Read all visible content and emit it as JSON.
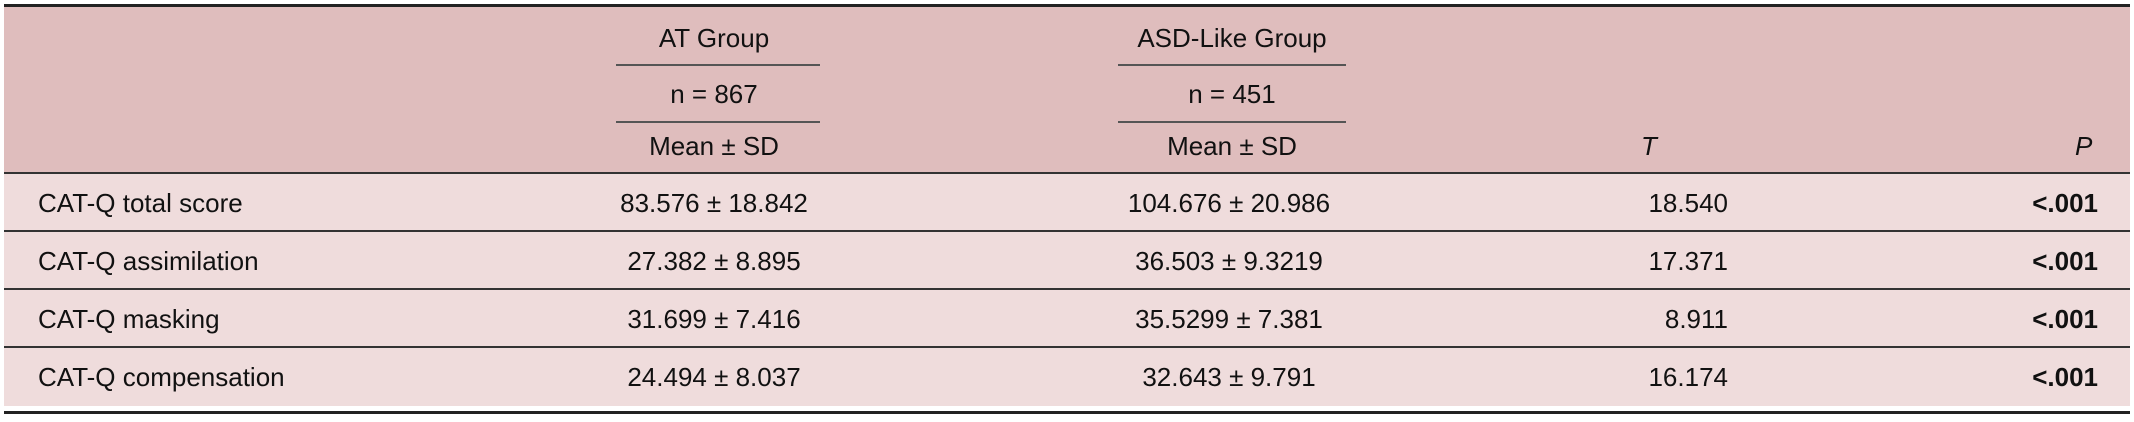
{
  "table": {
    "header": {
      "at_group": "AT Group",
      "at_n": "n = 867",
      "at_stat": "Mean ± SD",
      "asd_group": "ASD-Like Group",
      "asd_n": "n = 451",
      "asd_stat": "Mean ± SD",
      "t_label": "T",
      "p_label": "P"
    },
    "rows": [
      {
        "label": "CAT-Q total score",
        "at": "83.576 ± 18.842",
        "asd": "104.676 ± 20.986",
        "t": "18.540",
        "p": "<.001"
      },
      {
        "label": "CAT-Q assimilation",
        "at": "27.382 ± 8.895",
        "asd": "36.503 ± 9.3219",
        "t": "17.371",
        "p": "<.001"
      },
      {
        "label": "CAT-Q masking",
        "at": "31.699 ± 7.416",
        "asd": "35.5299 ± 7.381",
        "t": "8.911",
        "p": "<.001"
      },
      {
        "label": "CAT-Q compensation",
        "at": "24.494 ± 8.037",
        "asd": "32.643 ± 9.791",
        "t": "16.174",
        "p": "<.001"
      }
    ]
  }
}
